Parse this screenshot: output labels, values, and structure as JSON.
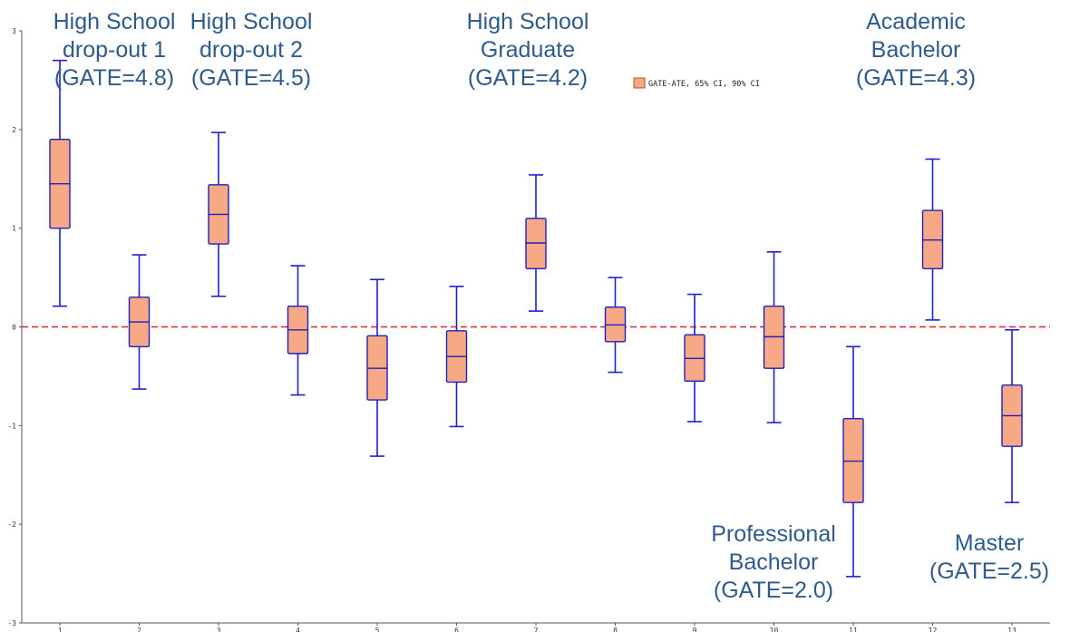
{
  "chart_data": {
    "type": "box",
    "legend": {
      "label": "GATE-ATE, 65% CI, 90% CI",
      "position": "top-center"
    },
    "colors": {
      "box_fill": "#f7a986",
      "box_stroke": "#1f1fbf",
      "whisker": "#1f1fd0",
      "reference_line": "#dd2222"
    },
    "x": {
      "tick_labels": [
        "1",
        "2",
        "3",
        "4",
        "5",
        "6",
        "7",
        "8",
        "9",
        "10",
        "11",
        "12",
        "13"
      ]
    },
    "y": {
      "range": [
        -3,
        3
      ],
      "tick_values": [
        -3,
        -2,
        -1,
        0,
        1,
        2,
        3
      ],
      "tick_labels": [
        "-3",
        "-2",
        "-1",
        "0",
        "1",
        "2",
        "3"
      ]
    },
    "reference_line": {
      "y": 0,
      "style": "dashed"
    },
    "series": [
      {
        "x": 1,
        "whisker_low": 0.21,
        "box_low": 1.0,
        "median": 1.45,
        "box_high": 1.9,
        "whisker_high": 2.7
      },
      {
        "x": 2,
        "whisker_low": -0.63,
        "box_low": -0.2,
        "median": 0.05,
        "box_high": 0.3,
        "whisker_high": 0.73
      },
      {
        "x": 3,
        "whisker_low": 0.31,
        "box_low": 0.84,
        "median": 1.14,
        "box_high": 1.44,
        "whisker_high": 1.97
      },
      {
        "x": 4,
        "whisker_low": -0.69,
        "box_low": -0.27,
        "median": -0.03,
        "box_high": 0.21,
        "whisker_high": 0.62
      },
      {
        "x": 5,
        "whisker_low": -1.31,
        "box_low": -0.74,
        "median": -0.42,
        "box_high": -0.09,
        "whisker_high": 0.48
      },
      {
        "x": 6,
        "whisker_low": -1.01,
        "box_low": -0.56,
        "median": -0.3,
        "box_high": -0.04,
        "whisker_high": 0.41
      },
      {
        "x": 7,
        "whisker_low": 0.16,
        "box_low": 0.59,
        "median": 0.85,
        "box_high": 1.1,
        "whisker_high": 1.54
      },
      {
        "x": 8,
        "whisker_low": -0.46,
        "box_low": -0.15,
        "median": 0.02,
        "box_high": 0.2,
        "whisker_high": 0.5
      },
      {
        "x": 9,
        "whisker_low": -0.96,
        "box_low": -0.55,
        "median": -0.32,
        "box_high": -0.08,
        "whisker_high": 0.33
      },
      {
        "x": 10,
        "whisker_low": -0.97,
        "box_low": -0.42,
        "median": -0.1,
        "box_high": 0.21,
        "whisker_high": 0.76
      },
      {
        "x": 11,
        "whisker_low": -2.53,
        "box_low": -1.78,
        "median": -1.36,
        "box_high": -0.93,
        "whisker_high": -0.2
      },
      {
        "x": 12,
        "whisker_low": 0.07,
        "box_low": 0.59,
        "median": 0.88,
        "box_high": 1.18,
        "whisker_high": 1.7
      },
      {
        "x": 13,
        "whisker_low": -1.78,
        "box_low": -1.21,
        "median": -0.9,
        "box_high": -0.59,
        "whisker_high": -0.03
      }
    ],
    "annotations": [
      {
        "lines": [
          "High School",
          "drop-out 1",
          "(GATE=4.8)"
        ],
        "near_x": 1
      },
      {
        "lines": [
          "High School",
          "drop-out 2",
          "(GATE=4.5)"
        ],
        "near_x": 3
      },
      {
        "lines": [
          "High School",
          "Graduate",
          "(GATE=4.2)"
        ],
        "near_x": 7
      },
      {
        "lines": [
          "Academic",
          "Bachelor",
          "(GATE=4.3)"
        ],
        "near_x": 12
      },
      {
        "lines": [
          "Professional",
          "Bachelor",
          "(GATE=2.0)"
        ],
        "near_x": 11
      },
      {
        "lines": [
          "Master",
          "(GATE=2.5)"
        ],
        "near_x": 13
      }
    ]
  }
}
